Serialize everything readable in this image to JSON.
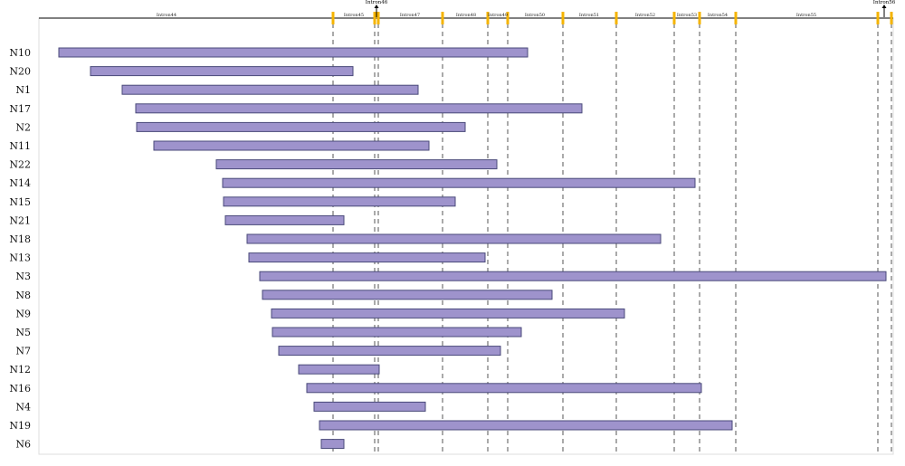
{
  "chart_data": {
    "type": "bar",
    "orientation": "horizontal-range",
    "title": "",
    "xlabel": "",
    "ylabel": "",
    "xlim": [
      0,
      1000
    ],
    "colors": {
      "bar": "#9e93cc",
      "bar_border": "#4a4a7a",
      "boundary": "#f5b400",
      "guide": "#555555"
    },
    "boundaries": [
      368,
      414,
      418,
      489,
      539,
      561,
      622,
      681,
      745,
      773,
      813,
      970,
      985
    ],
    "intron_labels": [
      {
        "text": "Intron44",
        "at": 184
      },
      {
        "text": "Intron45",
        "at": 391
      },
      {
        "text": "Intron47",
        "at": 453
      },
      {
        "text": "Intron48",
        "at": 515
      },
      {
        "text": "Intron49",
        "at": 550
      },
      {
        "text": "Intron50",
        "at": 591
      },
      {
        "text": "Intron51",
        "at": 651
      },
      {
        "text": "Intron52",
        "at": 713
      },
      {
        "text": "Intron53",
        "at": 759
      },
      {
        "text": "Intron54",
        "at": 793
      },
      {
        "text": "Intron55",
        "at": 891
      }
    ],
    "arrow_labels": [
      {
        "text": "Intron46",
        "at": 416
      },
      {
        "text": "Intron56",
        "at": 977
      }
    ],
    "series": [
      {
        "name": "N10",
        "start": 65,
        "end": 583
      },
      {
        "name": "N20",
        "start": 100,
        "end": 390
      },
      {
        "name": "N1",
        "start": 135,
        "end": 462
      },
      {
        "name": "N17",
        "start": 150,
        "end": 643
      },
      {
        "name": "N2",
        "start": 151,
        "end": 514
      },
      {
        "name": "N11",
        "start": 170,
        "end": 474
      },
      {
        "name": "N22",
        "start": 239,
        "end": 549
      },
      {
        "name": "N14",
        "start": 246,
        "end": 768
      },
      {
        "name": "N15",
        "start": 247,
        "end": 503
      },
      {
        "name": "N21",
        "start": 249,
        "end": 380
      },
      {
        "name": "N18",
        "start": 273,
        "end": 730
      },
      {
        "name": "N13",
        "start": 275,
        "end": 536
      },
      {
        "name": "N3",
        "start": 287,
        "end": 979
      },
      {
        "name": "N8",
        "start": 290,
        "end": 610
      },
      {
        "name": "N9",
        "start": 300,
        "end": 690
      },
      {
        "name": "N5",
        "start": 301,
        "end": 576
      },
      {
        "name": "N7",
        "start": 308,
        "end": 553
      },
      {
        "name": "N12",
        "start": 330,
        "end": 419
      },
      {
        "name": "N16",
        "start": 339,
        "end": 775
      },
      {
        "name": "N4",
        "start": 347,
        "end": 470
      },
      {
        "name": "N19",
        "start": 353,
        "end": 809
      },
      {
        "name": "N6",
        "start": 355,
        "end": 380
      }
    ]
  }
}
